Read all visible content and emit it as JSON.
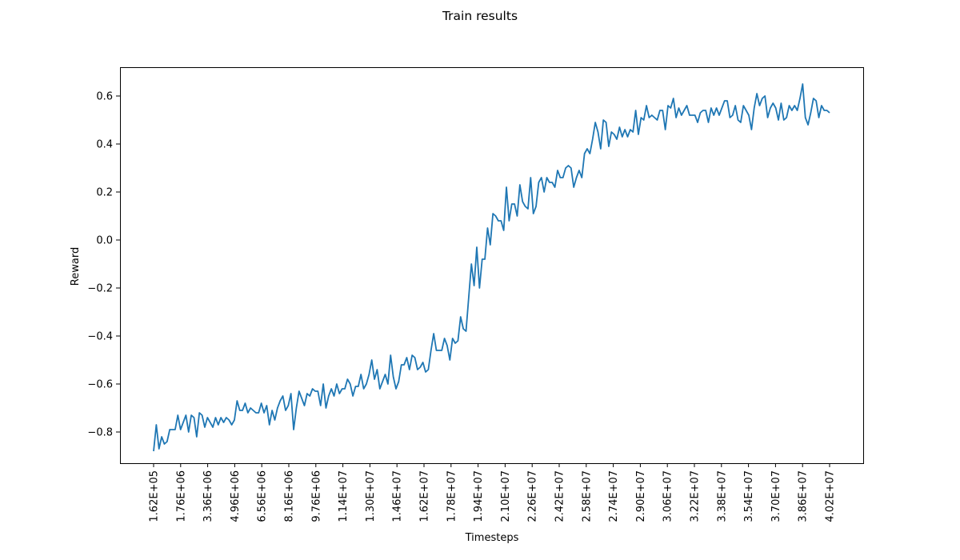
{
  "chart_data": {
    "type": "line",
    "title": "Train results",
    "xlabel": "Timesteps",
    "ylabel": "Reward",
    "ylim": [
      -0.93,
      0.72
    ],
    "grid": false,
    "legend": "none",
    "series_color": "#1f77b4",
    "xtick_labels": [
      "1.62E+05",
      "1.76E+06",
      "3.36E+06",
      "4.96E+06",
      "6.56E+06",
      "8.16E+06",
      "9.76E+06",
      "1.14E+07",
      "1.30E+07",
      "1.46E+07",
      "1.62E+07",
      "1.78E+07",
      "1.94E+07",
      "2.10E+07",
      "2.26E+07",
      "2.42E+07",
      "2.58E+07",
      "2.74E+07",
      "2.90E+07",
      "3.06E+07",
      "3.22E+07",
      "3.38E+07",
      "3.54E+07",
      "3.70E+07",
      "3.86E+07",
      "4.02E+07"
    ],
    "yticks": [
      -0.8,
      -0.6,
      -0.4,
      -0.2,
      0.0,
      0.2,
      0.4,
      0.6
    ],
    "ytick_labels": [
      "−0.8",
      "−0.6",
      "−0.4",
      "−0.2",
      "0.0",
      "0.2",
      "0.4",
      "0.6"
    ],
    "series": [
      {
        "values": [
          -0.88,
          -0.77,
          -0.87,
          -0.82,
          -0.85,
          -0.84,
          -0.79,
          -0.79,
          -0.79,
          -0.73,
          -0.79,
          -0.76,
          -0.73,
          -0.8,
          -0.73,
          -0.74,
          -0.82,
          -0.72,
          -0.73,
          -0.78,
          -0.74,
          -0.76,
          -0.78,
          -0.74,
          -0.77,
          -0.74,
          -0.76,
          -0.74,
          -0.75,
          -0.77,
          -0.75,
          -0.67,
          -0.71,
          -0.71,
          -0.68,
          -0.72,
          -0.7,
          -0.71,
          -0.72,
          -0.72,
          -0.68,
          -0.72,
          -0.69,
          -0.77,
          -0.71,
          -0.75,
          -0.7,
          -0.67,
          -0.65,
          -0.71,
          -0.69,
          -0.64,
          -0.79,
          -0.7,
          -0.63,
          -0.66,
          -0.69,
          -0.64,
          -0.65,
          -0.62,
          -0.63,
          -0.63,
          -0.69,
          -0.6,
          -0.7,
          -0.65,
          -0.62,
          -0.65,
          -0.6,
          -0.64,
          -0.62,
          -0.62,
          -0.58,
          -0.6,
          -0.65,
          -0.61,
          -0.61,
          -0.56,
          -0.62,
          -0.6,
          -0.56,
          -0.5,
          -0.58,
          -0.54,
          -0.62,
          -0.59,
          -0.56,
          -0.6,
          -0.48,
          -0.57,
          -0.62,
          -0.59,
          -0.52,
          -0.52,
          -0.49,
          -0.54,
          -0.48,
          -0.49,
          -0.54,
          -0.53,
          -0.51,
          -0.55,
          -0.54,
          -0.46,
          -0.39,
          -0.46,
          -0.46,
          -0.46,
          -0.41,
          -0.44,
          -0.5,
          -0.41,
          -0.43,
          -0.42,
          -0.32,
          -0.37,
          -0.38,
          -0.24,
          -0.1,
          -0.19,
          -0.03,
          -0.2,
          -0.08,
          -0.08,
          0.05,
          -0.02,
          0.11,
          0.1,
          0.08,
          0.08,
          0.04,
          0.22,
          0.08,
          0.15,
          0.15,
          0.1,
          0.23,
          0.16,
          0.14,
          0.13,
          0.26,
          0.11,
          0.14,
          0.24,
          0.26,
          0.2,
          0.26,
          0.24,
          0.24,
          0.22,
          0.29,
          0.26,
          0.26,
          0.3,
          0.31,
          0.3,
          0.22,
          0.26,
          0.29,
          0.26,
          0.36,
          0.38,
          0.36,
          0.42,
          0.49,
          0.45,
          0.38,
          0.5,
          0.49,
          0.39,
          0.45,
          0.44,
          0.42,
          0.47,
          0.43,
          0.46,
          0.43,
          0.46,
          0.45,
          0.54,
          0.44,
          0.51,
          0.5,
          0.56,
          0.51,
          0.52,
          0.51,
          0.5,
          0.54,
          0.54,
          0.46,
          0.56,
          0.55,
          0.59,
          0.51,
          0.55,
          0.52,
          0.54,
          0.56,
          0.52,
          0.52,
          0.52,
          0.49,
          0.53,
          0.54,
          0.54,
          0.49,
          0.55,
          0.52,
          0.55,
          0.52,
          0.55,
          0.58,
          0.58,
          0.51,
          0.52,
          0.56,
          0.5,
          0.49,
          0.56,
          0.54,
          0.52,
          0.46,
          0.55,
          0.61,
          0.56,
          0.59,
          0.6,
          0.51,
          0.55,
          0.57,
          0.55,
          0.5,
          0.57,
          0.5,
          0.51,
          0.56,
          0.54,
          0.56,
          0.54,
          0.59,
          0.65,
          0.51,
          0.48,
          0.53,
          0.59,
          0.58,
          0.51,
          0.56,
          0.54,
          0.54,
          0.53
        ]
      }
    ]
  }
}
